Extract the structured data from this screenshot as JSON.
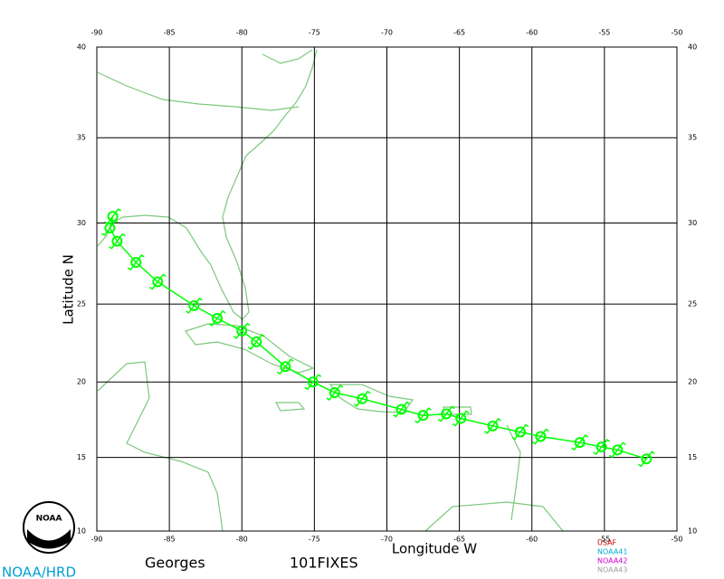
{
  "header": {
    "storm": "Georges",
    "fixes": "101FIXES",
    "agency": "NOAA/HRD",
    "logo": "NOAA"
  },
  "chart_data": {
    "type": "map",
    "projection": "mercator",
    "x_label": "Longitude W",
    "y_label": "Latitude N",
    "xlim": [
      -90,
      -50
    ],
    "ylim": [
      10,
      40
    ],
    "xticks": [
      -90,
      -85,
      -80,
      -75,
      -70,
      -65,
      -60,
      -55,
      -50
    ],
    "yticks": [
      10,
      15,
      20,
      25,
      30,
      35,
      40
    ],
    "grid": true,
    "track_color": "#00ff00",
    "x": [
      -52.1,
      -54.1,
      -55.2,
      -56.7,
      -59.4,
      -60.8,
      -62.7,
      -64.9,
      -65.9,
      -67.5,
      -69.0,
      -71.7,
      -73.6,
      -75.1,
      -77.0,
      -79.0,
      -80.0,
      -81.7,
      -83.3,
      -85.8,
      -87.3,
      -88.6,
      -89.1,
      -88.9
    ],
    "values": [
      14.9,
      15.5,
      15.7,
      16.0,
      16.4,
      16.7,
      17.1,
      17.6,
      17.9,
      17.8,
      18.2,
      18.9,
      19.3,
      20.0,
      21.0,
      22.6,
      23.3,
      24.1,
      24.9,
      26.4,
      27.6,
      28.9,
      29.7,
      30.4
    ],
    "legend": [
      {
        "name": "USAF",
        "color": "#cc0000"
      },
      {
        "name": "NOAA41",
        "color": "#00b0d0"
      },
      {
        "name": "NOAA42",
        "color": "#d000d0"
      },
      {
        "name": "NOAA43",
        "color": "#a0a0a0"
      }
    ]
  }
}
